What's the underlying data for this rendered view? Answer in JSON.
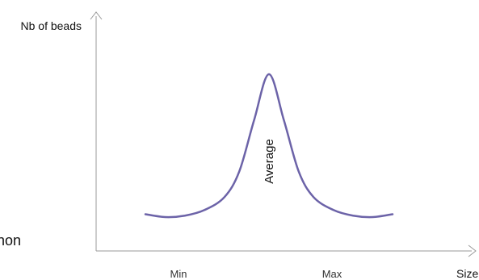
{
  "chart_data": {
    "type": "line",
    "title": "",
    "ylabel": "Nb of beads",
    "xlabel": "Size",
    "x_ticks": [
      "Min",
      "Max"
    ],
    "annotation": "Average",
    "cropped_left_text": "non",
    "grid": false,
    "series": [
      {
        "color": "#6c63a8",
        "x": [
          0.0,
          0.08,
          0.16,
          0.24,
          0.32,
          0.38,
          0.44,
          0.5,
          0.56,
          0.62,
          0.68,
          0.76,
          0.84,
          0.92,
          1.0
        ],
        "values": [
          0.02,
          0.0,
          0.01,
          0.05,
          0.14,
          0.32,
          0.68,
          1.0,
          0.68,
          0.32,
          0.14,
          0.05,
          0.01,
          0.0,
          0.02
        ]
      }
    ],
    "xlim": [
      0,
      1
    ],
    "ylim": [
      0,
      1
    ]
  },
  "colors": {
    "axis": "#9a9a9a",
    "curve": "#6c63a8",
    "text": "#111111",
    "tick_text": "#333333"
  }
}
